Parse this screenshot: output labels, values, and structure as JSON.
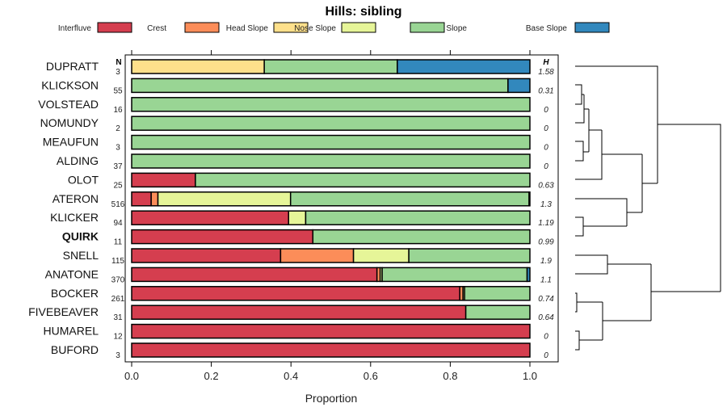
{
  "chart_data": {
    "type": "bar",
    "orientation": "horizontal-stacked",
    "title": "Hills: sibling",
    "xlabel": "Proportion",
    "xlim": [
      0,
      1
    ],
    "xticks": [
      "0.0",
      "0.2",
      "0.4",
      "0.6",
      "0.8",
      "1.0"
    ],
    "n_header": "N",
    "h_header": "H",
    "legend_placement": "top",
    "highlight": "QUIRK",
    "legend": [
      {
        "name": "Interfluve",
        "color": "#D53E4F"
      },
      {
        "name": "Crest",
        "color": "#FC8D59"
      },
      {
        "name": "Head Slope",
        "color": "#FEE08B"
      },
      {
        "name": "Nose Slope",
        "color": "#E6F598"
      },
      {
        "name": "Side Slope",
        "color": "#99D594"
      },
      {
        "name": "Base Slope",
        "color": "#3288BD"
      }
    ],
    "rows": [
      {
        "label": "DUPRATT",
        "n": "3",
        "h": "1.58",
        "values": [
          0,
          0,
          0.333,
          0,
          0.334,
          0.333
        ]
      },
      {
        "label": "KLICKSON",
        "n": "55",
        "h": "0.31",
        "values": [
          0,
          0,
          0,
          0,
          0.945,
          0.055
        ]
      },
      {
        "label": "VOLSTEAD",
        "n": "16",
        "h": "0",
        "values": [
          0,
          0,
          0,
          0,
          1,
          0
        ]
      },
      {
        "label": "NOMUNDY",
        "n": "2",
        "h": "0",
        "values": [
          0,
          0,
          0,
          0,
          1,
          0
        ]
      },
      {
        "label": "MEAUFUN",
        "n": "3",
        "h": "0",
        "values": [
          0,
          0,
          0,
          0,
          1,
          0
        ]
      },
      {
        "label": "ALDING",
        "n": "37",
        "h": "0",
        "values": [
          0,
          0,
          0,
          0,
          1,
          0
        ]
      },
      {
        "label": "OLOT",
        "n": "25",
        "h": "0.63",
        "values": [
          0.16,
          0,
          0,
          0,
          0.84,
          0
        ]
      },
      {
        "label": "ATERON",
        "n": "516",
        "h": "1.3",
        "values": [
          0.049,
          0.017,
          0,
          0.333,
          0.599,
          0.002
        ]
      },
      {
        "label": "KLICKER",
        "n": "94",
        "h": "1.19",
        "values": [
          0.394,
          0,
          0,
          0.043,
          0.563,
          0
        ]
      },
      {
        "label": "QUIRK",
        "n": "11",
        "h": "0.99",
        "values": [
          0.455,
          0,
          0,
          0,
          0.545,
          0
        ]
      },
      {
        "label": "SNELL",
        "n": "115",
        "h": "1.9",
        "values": [
          0.374,
          0.183,
          0,
          0.139,
          0.304,
          0
        ]
      },
      {
        "label": "ANATONE",
        "n": "370",
        "h": "1.1",
        "values": [
          0.616,
          0.008,
          0,
          0.005,
          0.364,
          0.007
        ]
      },
      {
        "label": "BOCKER",
        "n": "261",
        "h": "0.74",
        "values": [
          0.824,
          0.008,
          0,
          0.004,
          0.164,
          0
        ]
      },
      {
        "label": "FIVEBEAVER",
        "n": "31",
        "h": "0.64",
        "values": [
          0.839,
          0,
          0,
          0,
          0.161,
          0
        ]
      },
      {
        "label": "HUMAREL",
        "n": "12",
        "h": "0",
        "values": [
          1,
          0,
          0,
          0,
          0,
          0
        ]
      },
      {
        "label": "BUFORD",
        "n": "3",
        "h": "0",
        "values": [
          1,
          0,
          0,
          0,
          0,
          0
        ]
      }
    ]
  }
}
